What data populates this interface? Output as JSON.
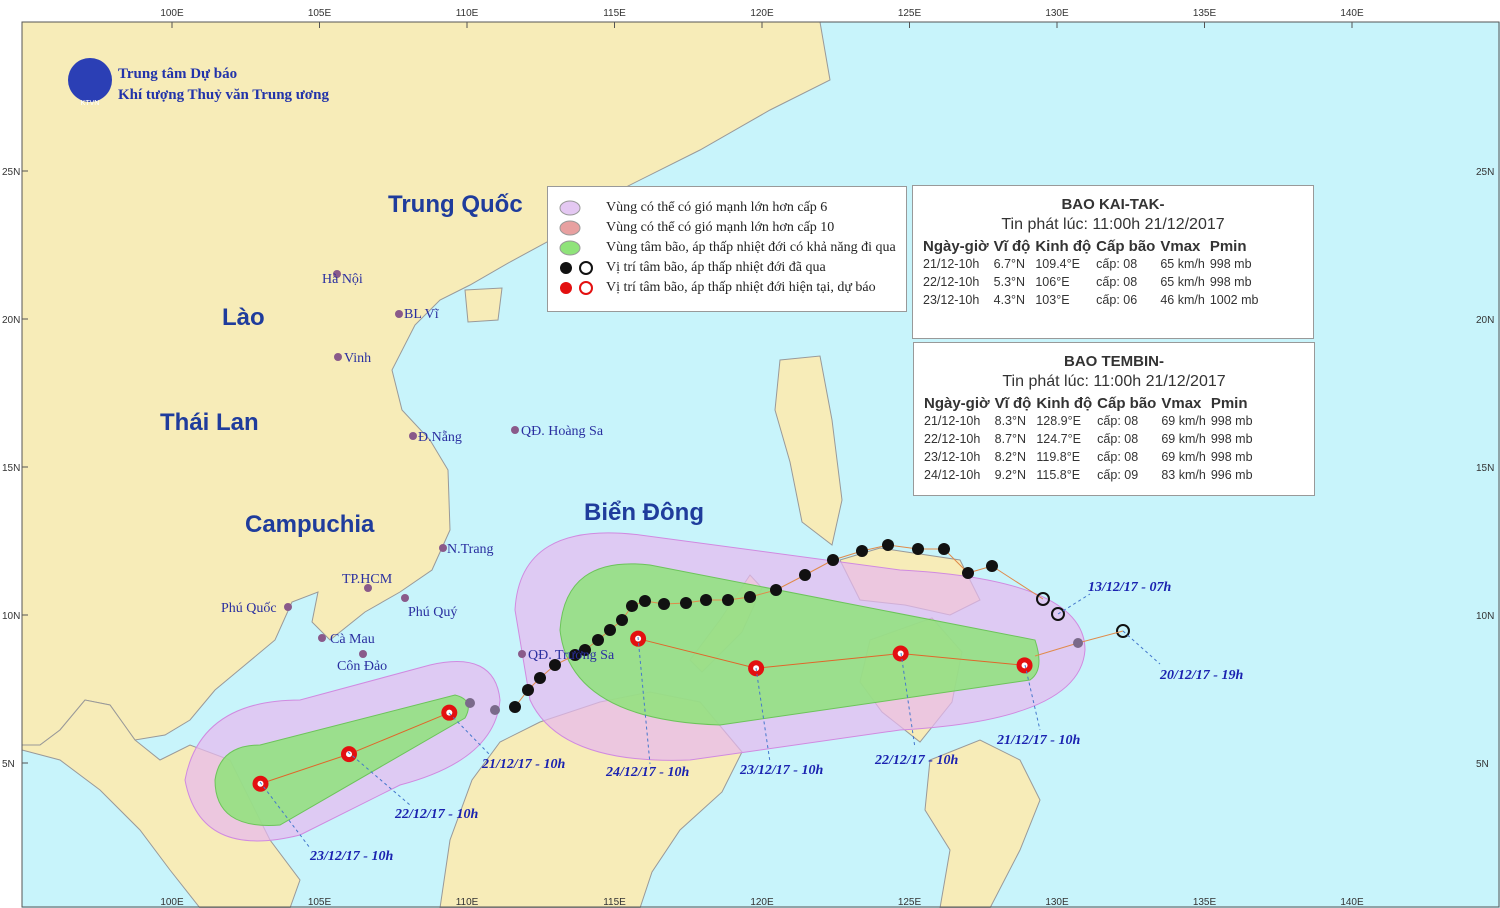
{
  "header": {
    "org_line1": "Trung tâm Dự báo",
    "org_line2": "Khí tượng Thuỷ văn Trung ương",
    "logo": "KTVN"
  },
  "longitudes": [
    "100E",
    "105E",
    "110E",
    "115E",
    "120E",
    "125E",
    "130E",
    "135E",
    "140E"
  ],
  "latitudes": [
    "25N",
    "20N",
    "15N",
    "10N",
    "5N"
  ],
  "regions": [
    "Trung Quốc",
    "Lào",
    "Thái Lan",
    "Campuchia",
    "Biển Đông"
  ],
  "places": [
    "Hà Nội",
    "BL Vĩ",
    "Vinh",
    "Đ.Nẵng",
    "QĐ. Hoàng Sa",
    "N.Trang",
    "TP.HCM",
    "Phú Quốc",
    "Phú Quý",
    "Cà Mau",
    "Côn Đảo",
    "QĐ. Trường Sa"
  ],
  "legend": [
    "Vùng có thể có gió mạnh lớn hơn cấp 6",
    "Vùng có thể có gió mạnh lớn hơn cấp 10",
    "Vùng tâm bão, áp thấp nhiệt đới có khả năng đi qua",
    "Vị trí tâm bão, áp thấp nhiệt đới đã qua",
    "Vị trí tâm bão, áp thấp nhiệt đới hiện tại, dự báo"
  ],
  "storms": [
    {
      "title": "BAO KAI-TAK-",
      "issued": "Tin phát lúc: 11:00h 21/12/2017",
      "columns": [
        "Ngày-giờ",
        "Vĩ độ",
        "Kinh độ",
        "Cấp bão",
        "Vmax",
        "Pmin"
      ],
      "rows": [
        [
          "21/12-10h",
          "6.7°N",
          "109.4°E",
          "cấp: 08",
          "65 km/h",
          "998 mb"
        ],
        [
          "22/12-10h",
          "5.3°N",
          "106°E",
          "cấp: 08",
          "65 km/h",
          "998 mb"
        ],
        [
          "23/12-10h",
          "4.3°N",
          "103°E",
          "cấp: 06",
          "46 km/h",
          "1002 mb"
        ]
      ]
    },
    {
      "title": "BAO TEMBIN-",
      "issued": "Tin phát lúc: 11:00h 21/12/2017",
      "columns": [
        "Ngày-giờ",
        "Vĩ độ",
        "Kinh độ",
        "Cấp bão",
        "Vmax",
        "Pmin"
      ],
      "rows": [
        [
          "21/12-10h",
          "8.3°N",
          "128.9°E",
          "cấp: 08",
          "69 km/h",
          "998 mb"
        ],
        [
          "22/12-10h",
          "8.7°N",
          "124.7°E",
          "cấp: 08",
          "69 km/h",
          "998 mb"
        ],
        [
          "23/12-10h",
          "8.2°N",
          "119.8°E",
          "cấp: 08",
          "69 km/h",
          "998 mb"
        ],
        [
          "24/12-10h",
          "9.2°N",
          "115.8°E",
          "cấp: 09",
          "83 km/h",
          "996 mb"
        ]
      ]
    }
  ],
  "track_labels": [
    "21/12/17 - 10h",
    "22/12/17 - 10h",
    "23/12/17 - 10h",
    "13/12/17 - 07h",
    "20/12/17 - 19h",
    "21/12/17 - 10h",
    "22/12/17 - 10h",
    "23/12/17 - 10h",
    "24/12/17 - 10h"
  ]
}
